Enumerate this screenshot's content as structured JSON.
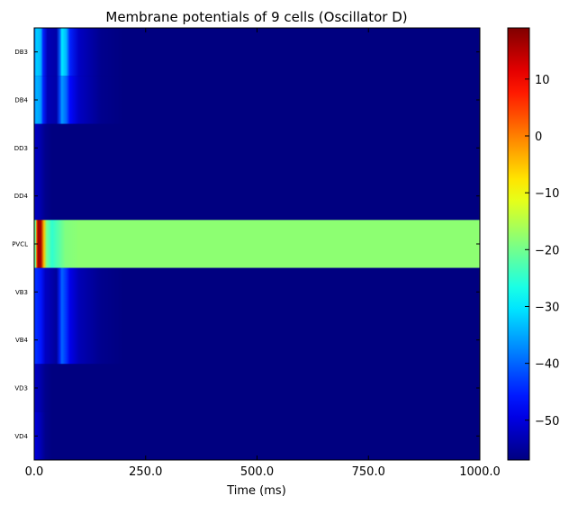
{
  "chart_data": {
    "type": "heatmap",
    "title": "Membrane potentials of 9 cells (Oscillator D)",
    "xlabel": "Time (ms)",
    "ylabel": "",
    "xlim": [
      0,
      1000
    ],
    "xticks": [
      0,
      250,
      500,
      750,
      1000
    ],
    "xtick_labels": [
      "0.0",
      "250.0",
      "500.0",
      "750.0",
      "1000.0"
    ],
    "rows": [
      "DB3",
      "DB4",
      "DD3",
      "DD4",
      "PVCL",
      "VB3",
      "VB4",
      "VD3",
      "VD4"
    ],
    "colormap": "jet",
    "colorbar": {
      "vmin": -57,
      "vmax": 19,
      "ticks": [
        10,
        0,
        -10,
        -20,
        -30,
        -40,
        -50
      ],
      "tick_labels": [
        "10",
        "0",
        "−10",
        "−20",
        "−30",
        "−40",
        "−50"
      ]
    },
    "series": [
      {
        "name": "DB3",
        "points": [
          [
            0,
            -40
          ],
          [
            5,
            -32
          ],
          [
            15,
            -34
          ],
          [
            20,
            -45
          ],
          [
            30,
            -53
          ],
          [
            50,
            -54
          ],
          [
            58,
            -40
          ],
          [
            62,
            -30
          ],
          [
            72,
            -34
          ],
          [
            80,
            -45
          ],
          [
            100,
            -52
          ],
          [
            150,
            -56
          ],
          [
            200,
            -57
          ],
          [
            1000,
            -57
          ]
        ]
      },
      {
        "name": "DB4",
        "points": [
          [
            0,
            -40
          ],
          [
            5,
            -34
          ],
          [
            15,
            -36
          ],
          [
            20,
            -45
          ],
          [
            30,
            -53
          ],
          [
            50,
            -54
          ],
          [
            58,
            -42
          ],
          [
            62,
            -36
          ],
          [
            72,
            -40
          ],
          [
            80,
            -47
          ],
          [
            100,
            -52
          ],
          [
            150,
            -56
          ],
          [
            200,
            -57
          ],
          [
            1000,
            -57
          ]
        ]
      },
      {
        "name": "DD3",
        "points": [
          [
            0,
            -52
          ],
          [
            10,
            -53
          ],
          [
            25,
            -56
          ],
          [
            40,
            -57
          ],
          [
            1000,
            -57
          ]
        ]
      },
      {
        "name": "DD4",
        "points": [
          [
            0,
            -52
          ],
          [
            10,
            -53
          ],
          [
            25,
            -56
          ],
          [
            40,
            -57
          ],
          [
            1000,
            -57
          ]
        ]
      },
      {
        "name": "PVCL",
        "points": [
          [
            0,
            -15
          ],
          [
            3,
            -22
          ],
          [
            5,
            0
          ],
          [
            8,
            16
          ],
          [
            15,
            16
          ],
          [
            22,
            -5
          ],
          [
            28,
            -20
          ],
          [
            40,
            -25
          ],
          [
            55,
            -22
          ],
          [
            70,
            -19
          ],
          [
            100,
            -18
          ],
          [
            1000,
            -18
          ]
        ]
      },
      {
        "name": "VB3",
        "points": [
          [
            0,
            -45
          ],
          [
            5,
            -44
          ],
          [
            15,
            -46
          ],
          [
            25,
            -52
          ],
          [
            50,
            -55
          ],
          [
            58,
            -45
          ],
          [
            62,
            -40
          ],
          [
            72,
            -44
          ],
          [
            80,
            -49
          ],
          [
            100,
            -53
          ],
          [
            150,
            -56
          ],
          [
            200,
            -57
          ],
          [
            1000,
            -57
          ]
        ]
      },
      {
        "name": "VB4",
        "points": [
          [
            0,
            -45
          ],
          [
            5,
            -44
          ],
          [
            15,
            -46
          ],
          [
            25,
            -52
          ],
          [
            50,
            -55
          ],
          [
            58,
            -45
          ],
          [
            62,
            -40
          ],
          [
            72,
            -44
          ],
          [
            80,
            -49
          ],
          [
            100,
            -53
          ],
          [
            150,
            -56
          ],
          [
            200,
            -57
          ],
          [
            1000,
            -57
          ]
        ]
      },
      {
        "name": "VD3",
        "points": [
          [
            0,
            -52
          ],
          [
            10,
            -53
          ],
          [
            25,
            -56
          ],
          [
            40,
            -57
          ],
          [
            1000,
            -57
          ]
        ]
      },
      {
        "name": "VD4",
        "points": [
          [
            0,
            -50
          ],
          [
            10,
            -52
          ],
          [
            25,
            -56
          ],
          [
            40,
            -57
          ],
          [
            1000,
            -57
          ]
        ]
      }
    ]
  }
}
